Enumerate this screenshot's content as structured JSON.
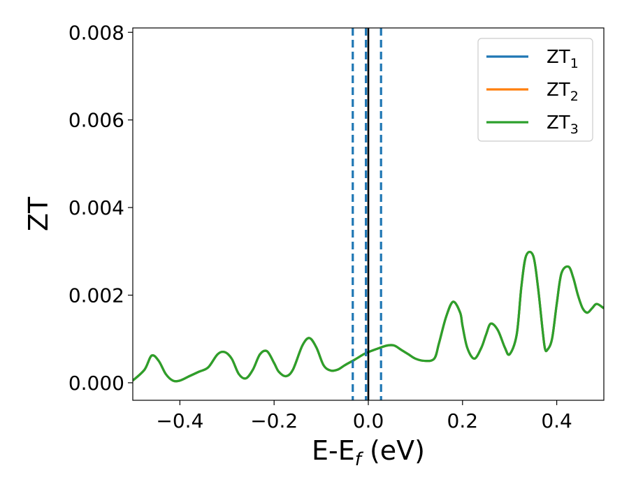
{
  "chart_data": {
    "type": "line",
    "xlabel": "E-E",
    "xlabel_sub": "f",
    "xlabel_unit": " (eV)",
    "ylabel": "ZT",
    "xlim": [
      -0.5,
      0.5
    ],
    "ylim": [
      -0.0004,
      0.0081
    ],
    "x_ticks": [
      -0.4,
      -0.2,
      0.0,
      0.2,
      0.4
    ],
    "x_tick_labels": [
      "−0.4",
      "−0.2",
      "0.0",
      "0.2",
      "0.4"
    ],
    "y_ticks": [
      0.0,
      0.002,
      0.004,
      0.006,
      0.008
    ],
    "y_tick_labels": [
      "0.000",
      "0.002",
      "0.004",
      "0.006",
      "0.008"
    ],
    "grid": false,
    "legend_position": "top-right",
    "colors": {
      "ZT1": "#1f77b4",
      "ZT2": "#ff7f0e",
      "ZT3": "#2ca02c",
      "fermi_line": "#000000",
      "dashed_lines": "#1f77b4"
    },
    "series": [
      {
        "name": "ZT",
        "sub": "1",
        "color": "#1f77b4",
        "x": [
          -0.5,
          -0.475,
          -0.46,
          -0.445,
          -0.43,
          -0.415,
          -0.4,
          -0.38,
          -0.36,
          -0.34,
          -0.32,
          -0.305,
          -0.29,
          -0.275,
          -0.26,
          -0.245,
          -0.23,
          -0.215,
          -0.2,
          -0.19,
          -0.175,
          -0.16,
          -0.14,
          -0.125,
          -0.11,
          -0.095,
          -0.08,
          -0.065,
          -0.05,
          -0.03,
          -0.01,
          0.0,
          0.02,
          0.04,
          0.055,
          0.07,
          0.085,
          0.1,
          0.12,
          0.14,
          0.15,
          0.165,
          0.18,
          0.195,
          0.2,
          0.21,
          0.225,
          0.24,
          0.25,
          0.26,
          0.275,
          0.29,
          0.3,
          0.315,
          0.325,
          0.335,
          0.35,
          0.36,
          0.37,
          0.375,
          0.38,
          0.39,
          0.4,
          0.41,
          0.425,
          0.435,
          0.445,
          0.455,
          0.465,
          0.475,
          0.485,
          0.5
        ],
        "y": [
          5e-05,
          0.0003,
          0.00062,
          0.0005,
          0.0002,
          5e-05,
          5e-05,
          0.00015,
          0.00025,
          0.00035,
          0.00065,
          0.0007,
          0.00055,
          0.0002,
          0.0001,
          0.0003,
          0.00065,
          0.00072,
          0.00045,
          0.00025,
          0.00015,
          0.0003,
          0.00085,
          0.00102,
          0.0008,
          0.0004,
          0.00028,
          0.0003,
          0.0004,
          0.00052,
          0.00065,
          0.0007,
          0.00078,
          0.00085,
          0.00085,
          0.00075,
          0.00065,
          0.00055,
          0.0005,
          0.00055,
          0.0009,
          0.0015,
          0.00185,
          0.0016,
          0.0013,
          0.0008,
          0.00055,
          0.0008,
          0.0011,
          0.00135,
          0.0012,
          0.0008,
          0.00065,
          0.0011,
          0.0022,
          0.0029,
          0.0029,
          0.0022,
          0.0012,
          0.00078,
          0.00075,
          0.001,
          0.0018,
          0.0025,
          0.00265,
          0.0024,
          0.002,
          0.0017,
          0.0016,
          0.0017,
          0.0018,
          0.0017
        ]
      },
      {
        "name": "ZT",
        "sub": "2",
        "color": "#ff7f0e",
        "x": [
          -0.5,
          -0.475,
          -0.46,
          -0.445,
          -0.43,
          -0.415,
          -0.4,
          -0.38,
          -0.36,
          -0.34,
          -0.32,
          -0.305,
          -0.29,
          -0.275,
          -0.26,
          -0.245,
          -0.23,
          -0.215,
          -0.2,
          -0.19,
          -0.175,
          -0.16,
          -0.14,
          -0.125,
          -0.11,
          -0.095,
          -0.08,
          -0.065,
          -0.05,
          -0.03,
          -0.01,
          0.0,
          0.02,
          0.04,
          0.055,
          0.07,
          0.085,
          0.1,
          0.12,
          0.14,
          0.15,
          0.165,
          0.18,
          0.195,
          0.2,
          0.21,
          0.225,
          0.24,
          0.25,
          0.26,
          0.275,
          0.29,
          0.3,
          0.315,
          0.325,
          0.335,
          0.35,
          0.36,
          0.37,
          0.375,
          0.38,
          0.39,
          0.4,
          0.41,
          0.425,
          0.435,
          0.445,
          0.455,
          0.465,
          0.475,
          0.485,
          0.5
        ],
        "y": [
          5e-05,
          0.0003,
          0.00062,
          0.0005,
          0.0002,
          5e-05,
          5e-05,
          0.00015,
          0.00025,
          0.00035,
          0.00065,
          0.0007,
          0.00055,
          0.0002,
          0.0001,
          0.0003,
          0.00065,
          0.00072,
          0.00045,
          0.00025,
          0.00015,
          0.0003,
          0.00085,
          0.00102,
          0.0008,
          0.0004,
          0.00028,
          0.0003,
          0.0004,
          0.00052,
          0.00065,
          0.0007,
          0.00078,
          0.00085,
          0.00085,
          0.00075,
          0.00065,
          0.00055,
          0.0005,
          0.00055,
          0.0009,
          0.0015,
          0.00185,
          0.0016,
          0.0013,
          0.0008,
          0.00055,
          0.0008,
          0.0011,
          0.00135,
          0.0012,
          0.0008,
          0.00065,
          0.0011,
          0.0022,
          0.0029,
          0.0029,
          0.0022,
          0.0012,
          0.00078,
          0.00075,
          0.001,
          0.0018,
          0.0025,
          0.00265,
          0.0024,
          0.002,
          0.0017,
          0.0016,
          0.0017,
          0.0018,
          0.0017
        ]
      },
      {
        "name": "ZT",
        "sub": "3",
        "color": "#2ca02c",
        "x": [
          -0.5,
          -0.475,
          -0.46,
          -0.445,
          -0.43,
          -0.415,
          -0.4,
          -0.38,
          -0.36,
          -0.34,
          -0.32,
          -0.305,
          -0.29,
          -0.275,
          -0.26,
          -0.245,
          -0.23,
          -0.215,
          -0.2,
          -0.19,
          -0.175,
          -0.16,
          -0.14,
          -0.125,
          -0.11,
          -0.095,
          -0.08,
          -0.065,
          -0.05,
          -0.03,
          -0.01,
          0.0,
          0.02,
          0.04,
          0.055,
          0.07,
          0.085,
          0.1,
          0.12,
          0.14,
          0.15,
          0.165,
          0.18,
          0.195,
          0.2,
          0.21,
          0.225,
          0.24,
          0.25,
          0.26,
          0.275,
          0.29,
          0.3,
          0.315,
          0.325,
          0.335,
          0.35,
          0.36,
          0.37,
          0.375,
          0.38,
          0.39,
          0.4,
          0.41,
          0.425,
          0.435,
          0.445,
          0.455,
          0.465,
          0.475,
          0.485,
          0.5
        ],
        "y": [
          5e-05,
          0.0003,
          0.00062,
          0.0005,
          0.0002,
          5e-05,
          5e-05,
          0.00015,
          0.00025,
          0.00035,
          0.00065,
          0.0007,
          0.00055,
          0.0002,
          0.0001,
          0.0003,
          0.00065,
          0.00072,
          0.00045,
          0.00025,
          0.00015,
          0.0003,
          0.00085,
          0.00102,
          0.0008,
          0.0004,
          0.00028,
          0.0003,
          0.0004,
          0.00052,
          0.00065,
          0.0007,
          0.00078,
          0.00085,
          0.00085,
          0.00075,
          0.00065,
          0.00055,
          0.0005,
          0.00055,
          0.0009,
          0.0015,
          0.00185,
          0.0016,
          0.0013,
          0.0008,
          0.00055,
          0.0008,
          0.0011,
          0.00135,
          0.0012,
          0.0008,
          0.00065,
          0.0011,
          0.0022,
          0.0029,
          0.0029,
          0.0022,
          0.0012,
          0.00078,
          0.00075,
          0.001,
          0.0018,
          0.0025,
          0.00265,
          0.0024,
          0.002,
          0.0017,
          0.0016,
          0.0017,
          0.0018,
          0.0017
        ]
      }
    ],
    "vertical_lines": [
      {
        "x": 0.0,
        "style": "solid",
        "color": "#000000"
      },
      {
        "x": -0.033,
        "style": "dashed",
        "color": "#1f77b4"
      },
      {
        "x": -0.005,
        "style": "dashed",
        "color": "#1f77b4"
      },
      {
        "x": 0.027,
        "style": "dashed",
        "color": "#1f77b4"
      }
    ]
  }
}
